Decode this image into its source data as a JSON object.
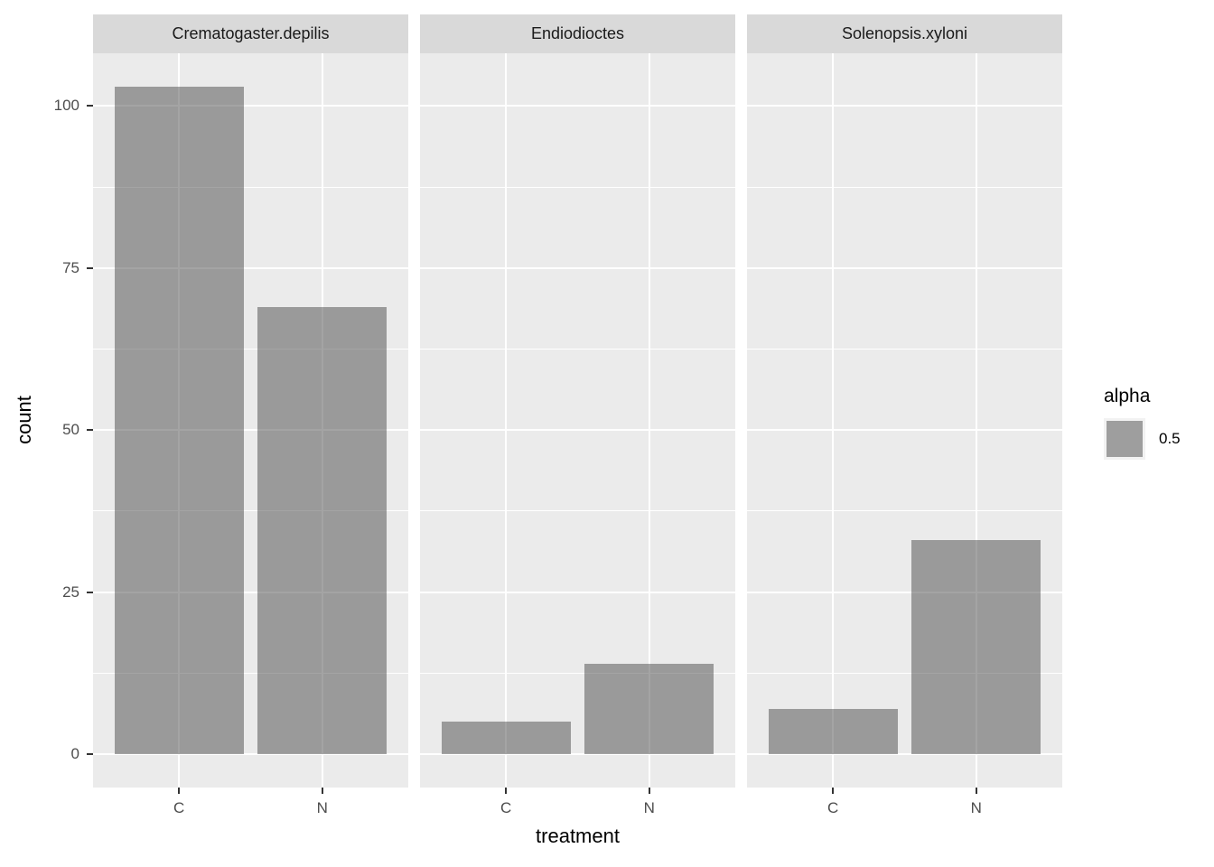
{
  "chart_data": {
    "type": "bar",
    "xlabel": "treatment",
    "ylabel": "count",
    "categories": [
      "C",
      "N"
    ],
    "facets": [
      {
        "label": "Crematogaster.depilis",
        "values": [
          103,
          69
        ]
      },
      {
        "label": "Endiodioctes",
        "values": [
          5,
          14
        ]
      },
      {
        "label": "Solenopsis.xyloni",
        "values": [
          7,
          33
        ]
      }
    ],
    "y_ticks": [
      0,
      25,
      50,
      75,
      100
    ],
    "y_minor_ticks": [
      12.5,
      37.5,
      62.5,
      87.5
    ],
    "ylim": [
      0,
      103
    ],
    "grid": true,
    "legend": {
      "title": "alpha",
      "position": "right",
      "entries": [
        {
          "label": "0.5"
        }
      ]
    },
    "colors": {
      "bar_fill": "rgba(73,73,73,0.5)",
      "panel_background": "#ebebeb",
      "strip_background": "#d9d9d9",
      "grid_color": "#ffffff",
      "tick_color": "#333333",
      "tick_label_color": "#4d4d4d",
      "strip_text_color": "#1a1a1a",
      "axis_title_color": "#000000",
      "legend_key_background": "#f2f2f2"
    }
  }
}
